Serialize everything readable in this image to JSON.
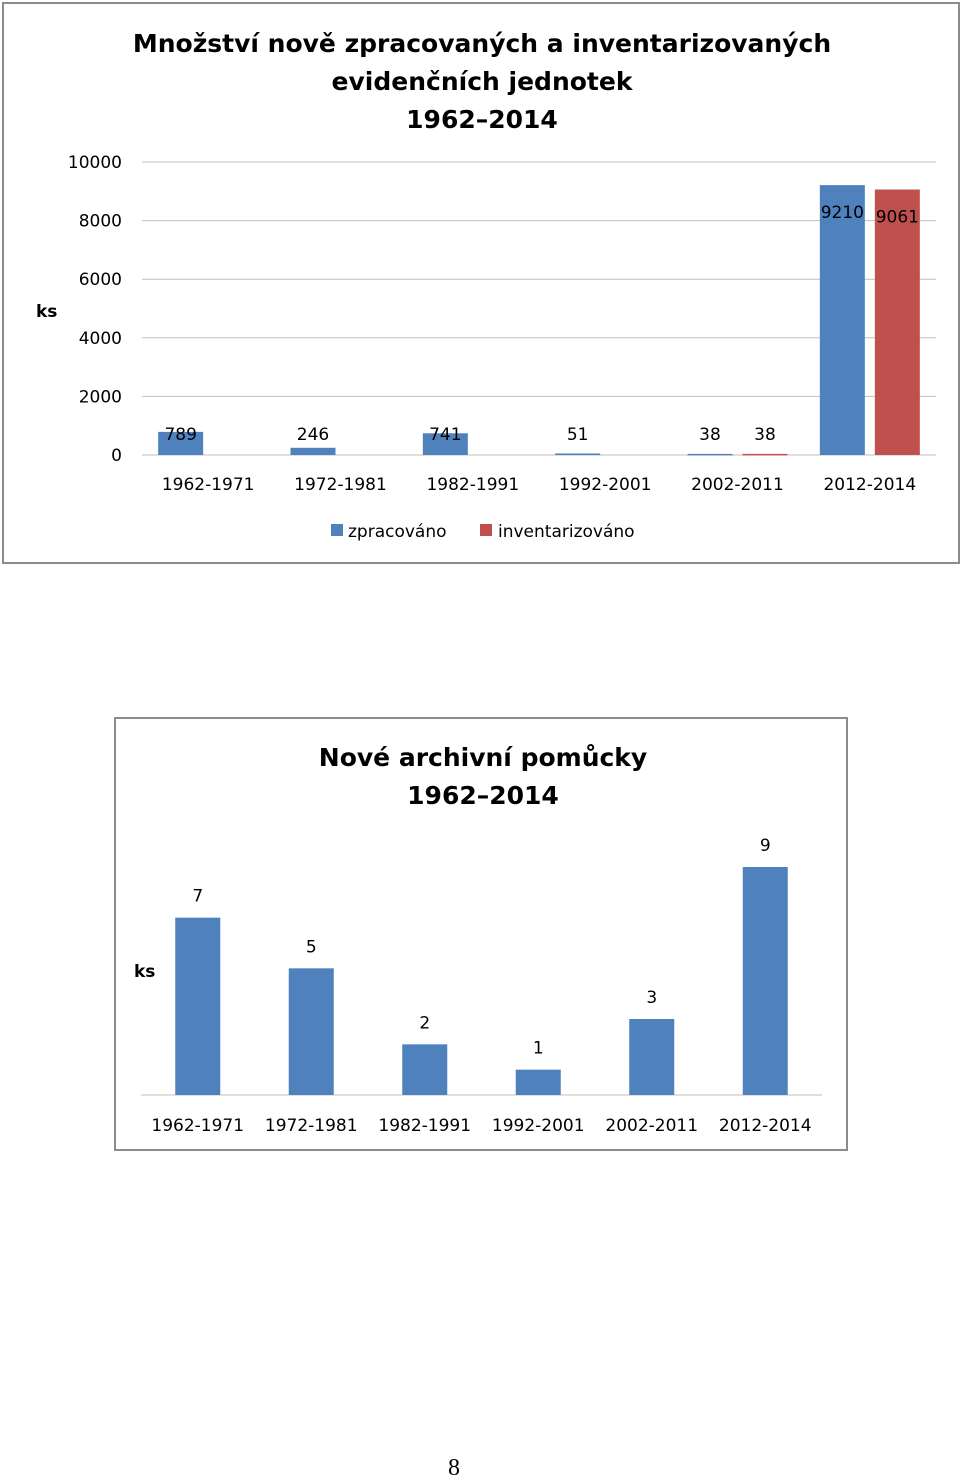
{
  "colors": {
    "zpracovano": "#4f81bd",
    "inventarizovano": "#c0504d",
    "grid": "#bfbfbf"
  },
  "chart_data": [
    {
      "type": "bar",
      "title_lines": [
        "Množství nově zpracovaných a inventarizovaných",
        "evidenčních jednotek",
        "1962–2014"
      ],
      "ylabel": "ks",
      "xlabel": "",
      "ylim": [
        0,
        10000
      ],
      "yticks": [
        "0",
        "2000",
        "4000",
        "6000",
        "8000",
        "10000"
      ],
      "ytick_values": [
        0,
        2000,
        4000,
        6000,
        8000,
        10000
      ],
      "grid": true,
      "legend_position": "bottom",
      "categories": [
        "1962-1971",
        "1972-1981",
        "1982-1991",
        "1992-2001",
        "2002-2011",
        "2012-2014"
      ],
      "series": [
        {
          "name": "zpracováno",
          "color": "#4f81bd",
          "values": [
            789,
            246,
            741,
            51,
            38,
            9210
          ],
          "labels": [
            "789",
            "246",
            "741",
            "51",
            "38",
            "9210"
          ]
        },
        {
          "name": "inventarizováno",
          "color": "#c0504d",
          "values": [
            null,
            null,
            null,
            null,
            38,
            9061
          ],
          "labels": [
            "",
            "",
            "",
            "",
            "38",
            "9061"
          ]
        }
      ]
    },
    {
      "type": "bar",
      "title_lines": [
        "Nové archivní pomůcky",
        "1962–2014"
      ],
      "ylabel": "ks",
      "xlabel": "",
      "ylim": [
        0,
        9
      ],
      "grid": false,
      "categories": [
        "1962-1971",
        "1972-1981",
        "1982-1991",
        "1992-2001",
        "2002-2011",
        "2012-2014"
      ],
      "series": [
        {
          "color": "#4f81bd",
          "values": [
            7,
            5,
            2,
            1,
            3,
            9
          ],
          "labels": [
            "7",
            "5",
            "2",
            "1",
            "3",
            "9"
          ]
        }
      ]
    }
  ],
  "page_number": "8"
}
